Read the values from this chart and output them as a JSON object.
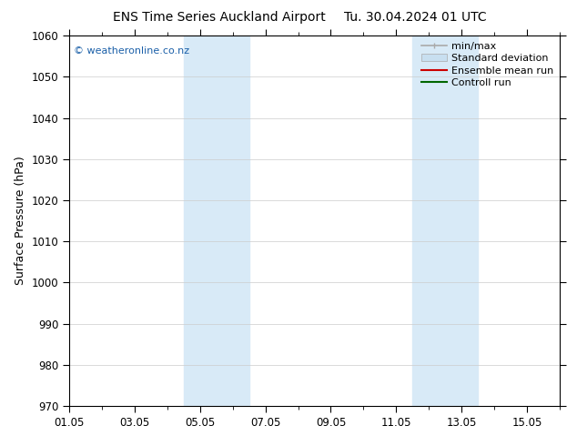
{
  "title": "ENS Time Series Auckland Airport",
  "title2": "Tu. 30.04.2024 01 UTC",
  "ylabel": "Surface Pressure (hPa)",
  "ylim": [
    970,
    1060
  ],
  "yticks": [
    970,
    980,
    990,
    1000,
    1010,
    1020,
    1030,
    1040,
    1050,
    1060
  ],
  "xlim": [
    0,
    15
  ],
  "xtick_labels": [
    "01.05",
    "03.05",
    "05.05",
    "07.05",
    "09.05",
    "11.05",
    "13.05",
    "15.05"
  ],
  "xtick_positions": [
    0,
    2,
    4,
    6,
    8,
    10,
    12,
    14
  ],
  "shaded_bands": [
    {
      "x_start": 3.5,
      "x_end": 5.5
    },
    {
      "x_start": 10.5,
      "x_end": 12.5
    }
  ],
  "shaded_color": "#d8eaf7",
  "watermark": "© weatheronline.co.nz",
  "watermark_color": "#1a5fa8",
  "legend_items": [
    {
      "label": "min/max",
      "color": "#aaaaaa",
      "lw": 1.2
    },
    {
      "label": "Standard deviation",
      "color": "#c8dff0",
      "lw": 8
    },
    {
      "label": "Ensemble mean run",
      "color": "#cc0000",
      "lw": 1.5
    },
    {
      "label": "Controll run",
      "color": "#006600",
      "lw": 1.5
    }
  ],
  "background_color": "#ffffff",
  "plot_bg_color": "#ffffff",
  "grid_color": "#cccccc",
  "tick_label_fontsize": 8.5,
  "axis_label_fontsize": 9,
  "title_fontsize": 10,
  "legend_fontsize": 8
}
